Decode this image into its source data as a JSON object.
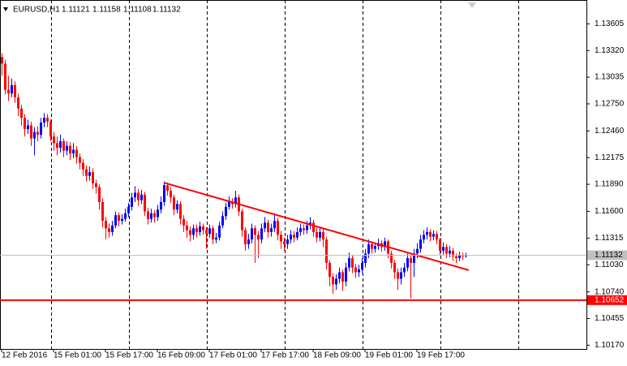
{
  "chart_data": {
    "type": "candlestick",
    "title": "EURUSD,H1",
    "categories": [
      "12 Feb 2016",
      null,
      null,
      null,
      null,
      null,
      null,
      null,
      null,
      null,
      null,
      null,
      null,
      null,
      null,
      null,
      "15 Feb 01:00",
      null,
      null,
      null,
      null,
      null,
      null,
      null,
      null,
      null,
      null,
      null,
      null,
      null,
      null,
      null,
      "15 Feb 17:00",
      null,
      null,
      null,
      null,
      null,
      null,
      null,
      null,
      null,
      null,
      null,
      null,
      null,
      null,
      null,
      "16 Feb 09:00",
      null,
      null,
      null,
      null,
      null,
      null,
      null,
      null,
      null,
      null,
      null,
      null,
      null,
      null,
      null,
      "17 Feb 01:00",
      null,
      null,
      null,
      null,
      null,
      null,
      null,
      null,
      null,
      null,
      null,
      null,
      null,
      null,
      null,
      "17 Feb 17:00",
      null,
      null,
      null,
      null,
      null,
      null,
      null,
      null,
      null,
      null,
      null,
      null,
      null,
      null,
      null,
      "18 Feb 09:00",
      null,
      null,
      null,
      null,
      null,
      null,
      null,
      null,
      null,
      null,
      null,
      null,
      null,
      null,
      null,
      "19 Feb 01:00",
      null,
      null,
      null,
      null,
      null,
      null,
      null,
      null,
      null,
      null,
      null,
      null,
      null,
      null,
      null,
      "19 Feb 17:00",
      null,
      null,
      null,
      null,
      null,
      null,
      null,
      null,
      null,
      null,
      null,
      null,
      null,
      null,
      null
    ],
    "open": [
      1.1325,
      1.1318,
      1.129,
      1.1286,
      1.1295,
      1.1282,
      1.127,
      1.126,
      1.1248,
      1.1252,
      1.1238,
      1.1245,
      1.1242,
      1.1255,
      1.126,
      1.1256,
      1.124,
      1.1233,
      1.1228,
      1.1235,
      1.1225,
      1.123,
      1.1222,
      1.1226,
      1.1218,
      1.1212,
      1.1205,
      1.1198,
      1.1202,
      1.119,
      1.1186,
      1.117,
      1.115,
      1.1142,
      1.1138,
      1.1145,
      1.1156,
      1.115,
      1.1152,
      1.1158,
      1.1165,
      1.1175,
      1.118,
      1.1172,
      1.1178,
      1.116,
      1.1152,
      1.1158,
      1.1154,
      1.1162,
      1.117,
      1.1188,
      1.1182,
      1.1175,
      1.1162,
      1.1168,
      1.1152,
      1.1145,
      1.114,
      1.1135,
      1.1142,
      1.1138,
      1.1144,
      1.114,
      1.1136,
      1.1142,
      1.113,
      1.1132,
      1.1145,
      1.1155,
      1.1165,
      1.117,
      1.1168,
      1.1175,
      1.116,
      1.114,
      1.1125,
      1.113,
      1.1142,
      1.1135,
      1.113,
      1.1142,
      1.1148,
      1.1138,
      1.1142,
      1.115,
      1.1135,
      1.1128,
      1.1125,
      1.113,
      1.1135,
      1.1132,
      1.1138,
      1.1142,
      1.114,
      1.1145,
      1.1148,
      1.1138,
      1.1132,
      1.1138,
      1.113,
      1.1105,
      1.109,
      1.1082,
      1.1088,
      1.1095,
      1.1085,
      1.11,
      1.111,
      1.11,
      1.1095,
      1.1098,
      1.1105,
      1.1115,
      1.1125,
      1.112,
      1.1123,
      1.1126,
      1.1122,
      1.1128,
      1.1115,
      1.1105,
      1.1095,
      1.1088,
      1.1095,
      1.11,
      1.111,
      1.1105,
      1.1115,
      1.112,
      1.113,
      1.1135,
      1.1138,
      1.1133,
      1.1136,
      1.113,
      1.1118,
      1.1122,
      1.1115,
      1.1118,
      1.1112,
      1.111,
      1.1113,
      1.11121
    ],
    "high": [
      1.1329,
      1.1322,
      1.1305,
      1.1302,
      1.1299,
      1.1286,
      1.1274,
      1.1264,
      1.1258,
      1.1256,
      1.125,
      1.1251,
      1.126,
      1.1265,
      1.1264,
      1.1258,
      1.1245,
      1.124,
      1.1242,
      1.1238,
      1.1235,
      1.1234,
      1.1233,
      1.123,
      1.1222,
      1.1216,
      1.1209,
      1.1208,
      1.1206,
      1.1194,
      1.1189,
      1.1174,
      1.1154,
      1.1147,
      1.115,
      1.116,
      1.1159,
      1.1157,
      1.1163,
      1.1169,
      1.118,
      1.1187,
      1.1184,
      1.1183,
      1.1181,
      1.1164,
      1.1163,
      1.1161,
      1.1167,
      1.1176,
      1.1192,
      1.1191,
      1.1186,
      1.1178,
      1.1172,
      1.1171,
      1.1156,
      1.115,
      1.1144,
      1.1146,
      1.1146,
      1.1149,
      1.1147,
      1.1143,
      1.1146,
      1.1145,
      1.1137,
      1.1149,
      1.116,
      1.1169,
      1.1176,
      1.1174,
      1.1182,
      1.1178,
      1.1163,
      1.1143,
      1.1136,
      1.1147,
      1.1145,
      1.1139,
      1.1147,
      1.1154,
      1.1151,
      1.1147,
      1.1158,
      1.1153,
      1.1139,
      1.1132,
      1.1135,
      1.114,
      1.1139,
      1.1143,
      1.1147,
      1.1146,
      1.115,
      1.1154,
      1.1151,
      1.1142,
      1.1142,
      1.1141,
      1.1133,
      1.1108,
      1.1094,
      1.1093,
      1.11,
      1.1098,
      1.1105,
      1.1116,
      1.1113,
      1.1104,
      1.1103,
      1.111,
      1.112,
      1.113,
      1.1128,
      1.1127,
      1.1131,
      1.1129,
      1.1132,
      1.113,
      1.1118,
      1.1108,
      1.1099,
      1.11,
      1.1105,
      1.1115,
      1.1113,
      1.112,
      1.1126,
      1.1135,
      1.114,
      1.1143,
      1.1141,
      1.114,
      1.1139,
      1.1132,
      1.1127,
      1.1125,
      1.1123,
      1.1121,
      1.1115,
      1.1117,
      1.1116,
      1.11158
    ],
    "low": [
      1.1305,
      1.1285,
      1.1278,
      1.1282,
      1.1276,
      1.1262,
      1.1252,
      1.124,
      1.1243,
      1.123,
      1.122,
      1.1235,
      1.1238,
      1.125,
      1.125,
      1.1235,
      1.1225,
      1.122,
      1.1223,
      1.1218,
      1.122,
      1.1215,
      1.1217,
      1.1211,
      1.1205,
      1.1198,
      1.1192,
      1.1193,
      1.1184,
      1.1179,
      1.1162,
      1.1143,
      1.113,
      1.1132,
      1.1134,
      1.1142,
      1.1144,
      1.1146,
      1.1149,
      1.1154,
      1.1161,
      1.117,
      1.1166,
      1.1168,
      1.1155,
      1.1146,
      1.1148,
      1.1148,
      1.115,
      1.1158,
      1.1166,
      1.1177,
      1.1169,
      1.1156,
      1.1158,
      1.1146,
      1.1138,
      1.1132,
      1.1128,
      1.113,
      1.1132,
      1.1134,
      1.1135,
      1.112,
      1.1132,
      1.1125,
      1.1126,
      1.1129,
      1.1142,
      1.1151,
      1.1162,
      1.1163,
      1.1164,
      1.1155,
      1.1133,
      1.1118,
      1.112,
      1.1126,
      1.1105,
      1.111,
      1.1126,
      1.1138,
      1.1132,
      1.1133,
      1.1138,
      1.1129,
      1.112,
      1.1118,
      1.112,
      1.1126,
      1.1127,
      1.1129,
      1.1134,
      1.1135,
      1.1136,
      1.1141,
      1.1133,
      1.1127,
      1.1128,
      1.1122,
      1.1098,
      1.108,
      1.1072,
      1.1076,
      1.1083,
      1.1075,
      1.108,
      1.1096,
      1.1094,
      1.1089,
      1.109,
      1.1094,
      1.11,
      1.111,
      1.1115,
      1.1116,
      1.1119,
      1.1117,
      1.1118,
      1.111,
      1.1099,
      1.1088,
      1.1076,
      1.1082,
      1.109,
      1.1096,
      1.1067,
      1.109,
      1.111,
      1.1116,
      1.1126,
      1.113,
      1.1128,
      1.1129,
      1.1125,
      1.1113,
      1.1114,
      1.111,
      1.1111,
      1.1107,
      1.1105,
      1.1107,
      1.1108,
      1.11108
    ],
    "close": [
      1.1318,
      1.129,
      1.1286,
      1.1295,
      1.1282,
      1.127,
      1.126,
      1.1248,
      1.1252,
      1.1238,
      1.1245,
      1.1242,
      1.1255,
      1.126,
      1.1256,
      1.124,
      1.1233,
      1.1228,
      1.1235,
      1.1225,
      1.123,
      1.1222,
      1.1226,
      1.1218,
      1.1212,
      1.1205,
      1.1198,
      1.1202,
      1.119,
      1.1186,
      1.117,
      1.115,
      1.1142,
      1.1138,
      1.1145,
      1.1156,
      1.115,
      1.1152,
      1.1158,
      1.1165,
      1.1175,
      1.118,
      1.1172,
      1.1178,
      1.116,
      1.1152,
      1.1158,
      1.1154,
      1.1162,
      1.117,
      1.1188,
      1.1182,
      1.1175,
      1.1162,
      1.1168,
      1.1152,
      1.1145,
      1.114,
      1.1135,
      1.1142,
      1.1138,
      1.1144,
      1.114,
      1.1136,
      1.1142,
      1.113,
      1.1132,
      1.1145,
      1.1155,
      1.1165,
      1.117,
      1.1168,
      1.1175,
      1.116,
      1.114,
      1.1125,
      1.113,
      1.1142,
      1.1135,
      1.113,
      1.1142,
      1.1148,
      1.1138,
      1.1142,
      1.115,
      1.1135,
      1.1128,
      1.1125,
      1.113,
      1.1135,
      1.1132,
      1.1138,
      1.1142,
      1.114,
      1.1145,
      1.1148,
      1.1138,
      1.1132,
      1.1138,
      1.113,
      1.1105,
      1.109,
      1.1082,
      1.1088,
      1.1095,
      1.1085,
      1.11,
      1.111,
      1.11,
      1.1095,
      1.1098,
      1.1105,
      1.1115,
      1.1125,
      1.112,
      1.1123,
      1.1126,
      1.1122,
      1.1128,
      1.1115,
      1.1105,
      1.1095,
      1.1088,
      1.1095,
      1.11,
      1.111,
      1.1105,
      1.1115,
      1.112,
      1.113,
      1.1135,
      1.1138,
      1.1133,
      1.1136,
      1.113,
      1.1118,
      1.1122,
      1.1115,
      1.1118,
      1.1112,
      1.111,
      1.1113,
      1.11121,
      1.11132
    ],
    "up_color": "#0000ff",
    "down_color": "#ff0000",
    "ylim": [
      1.1013,
      1.1386
    ],
    "yticks": [
      1.13605,
      {
        "value": 1.1332,
        "label": "1.13320"
      },
      1.13035,
      {
        "value": 1.1275,
        "label": "1.12750"
      },
      {
        "value": 1.1246,
        "label": "1.12460"
      },
      1.12175,
      {
        "value": 1.1189,
        "label": "1.11890"
      },
      {
        "value": 1.116,
        "label": "1.11600"
      },
      1.11315,
      {
        "value": 1.1103,
        "label": "1.11030"
      },
      {
        "value": 1.1074,
        "label": "1.10740"
      },
      1.10455,
      {
        "value": 1.1017,
        "label": "1.10170"
      }
    ],
    "current_price": 1.11132,
    "horizontal_line": {
      "value": 1.10652,
      "color": "#ff0000"
    },
    "trendline": {
      "x": [
        50,
        144
      ],
      "y": [
        1.11908,
        1.10972
      ],
      "color": "#ff0000"
    }
  }
}
